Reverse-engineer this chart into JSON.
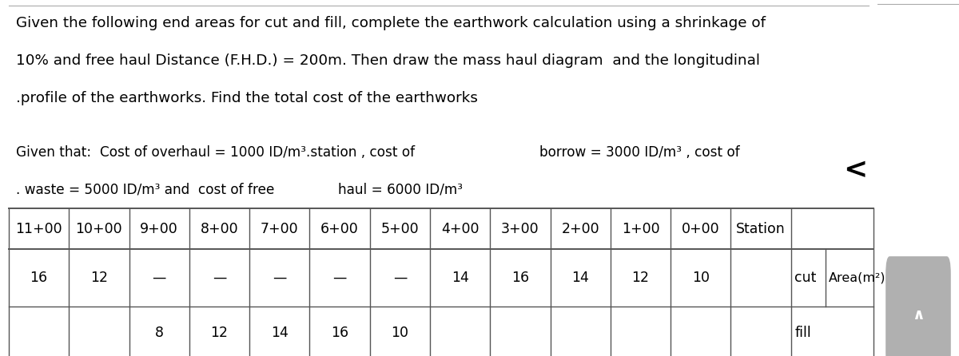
{
  "title_line1": "Given the following end areas for cut and fill, complete the earthwork calculation using a shrinkage of",
  "title_line2": "10% and free haul Distance (F.H.D.) = 200m. Then draw the mass haul diagram  and the longitudinal",
  "title_line3": ".profile of the earthworks. Find the total cost of the earthworks",
  "given_line1_left": "Given that:  Cost of overhaul = 1000 ID/m³.station , cost of",
  "given_line1_right": "borrow = 3000 ID/m³ , cost of",
  "given_line2_left": ". waste = 5000 ID/m³ and  cost of free",
  "given_line2_mid": "haul = 6000 ID/m³",
  "station_labels": [
    "11+00",
    "10+00",
    "9+00",
    "8+00",
    "7+00",
    "6+00",
    "5+00",
    "4+00",
    "3+00",
    "2+00",
    "1+00",
    "0+00",
    "Station"
  ],
  "cut_vals": [
    "16",
    "12",
    "—",
    "—",
    "—",
    "—",
    "—",
    "14",
    "16",
    "14",
    "12",
    "10"
  ],
  "fill_vals": [
    "",
    "",
    "8",
    "12",
    "14",
    "16",
    "10",
    "",
    "",
    "",
    "",
    ""
  ],
  "bg_color": "#ffffff",
  "text_color": "#000000",
  "chevron_char": "<",
  "scroll_bg": "#b0b0b0",
  "scroll_arrow": "∧",
  "font_size_title": 13.2,
  "font_size_given": 12.2,
  "font_size_table": 12.5,
  "top_line_color": "#aaaaaa",
  "table_line_color": "#555555"
}
